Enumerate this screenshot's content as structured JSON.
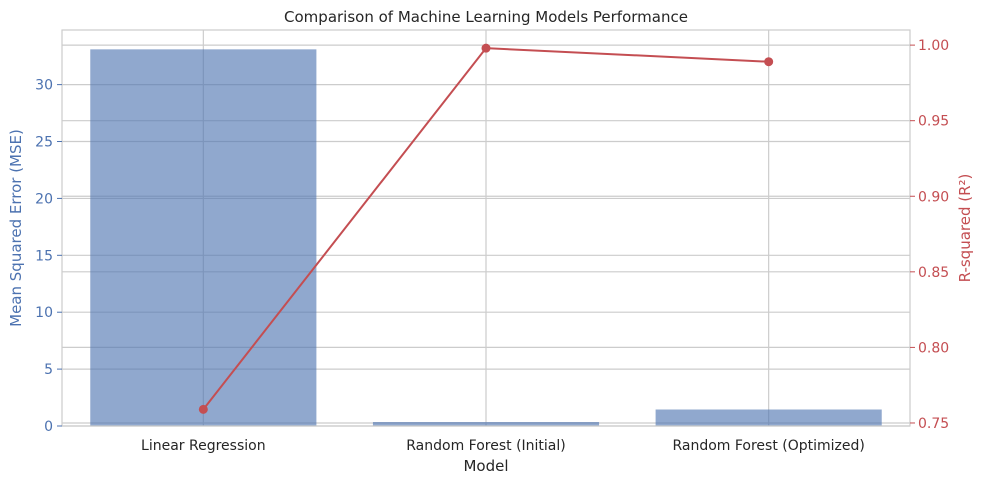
{
  "chart_data": {
    "type": "bar",
    "title": "Comparison of Machine Learning Models Performance",
    "xlabel": "Model",
    "categories": [
      "Linear Regression",
      "Random Forest (Initial)",
      "Random Forest (Optimized)"
    ],
    "series": [
      {
        "name": "Mean Squared Error (MSE)",
        "type": "bar",
        "axis": "left",
        "values": [
          33.1,
          0.35,
          1.45
        ],
        "color": "#4c72b0"
      },
      {
        "name": "R-squared (R²)",
        "type": "line",
        "axis": "right",
        "values": [
          0.759,
          0.998,
          0.989
        ],
        "color": "#c44e52"
      }
    ],
    "y_left": {
      "label": "Mean Squared Error (MSE)",
      "ylim": [
        0,
        34.8
      ],
      "ticks": [
        0,
        5,
        10,
        15,
        20,
        25,
        30
      ],
      "color": "#4c72b0"
    },
    "y_right": {
      "label": "R-squared (R²)",
      "ylim": [
        0.748,
        1.01
      ],
      "ticks": [
        "0.75",
        "0.80",
        "0.85",
        "0.90",
        "0.95",
        "1.00"
      ],
      "color": "#c44e52"
    },
    "grid": true
  }
}
